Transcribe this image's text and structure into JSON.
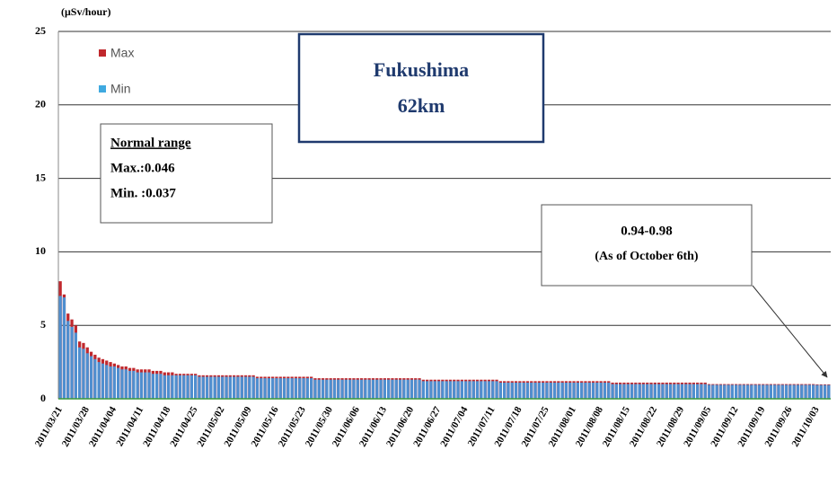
{
  "chart_data": {
    "type": "bar",
    "y_label": "(μSv/hour)",
    "categories": [
      "2011/03/21",
      null,
      null,
      null,
      null,
      null,
      null,
      "2011/03/28",
      null,
      null,
      null,
      null,
      null,
      null,
      "2011/04/04",
      null,
      null,
      null,
      null,
      null,
      null,
      "2011/04/11",
      null,
      null,
      null,
      null,
      null,
      null,
      "2011/04/18",
      null,
      null,
      null,
      null,
      null,
      null,
      "2011/04/25",
      null,
      null,
      null,
      null,
      null,
      null,
      "2011/05/02",
      null,
      null,
      null,
      null,
      null,
      null,
      "2011/05/09",
      null,
      null,
      null,
      null,
      null,
      null,
      "2011/05/16",
      null,
      null,
      null,
      null,
      null,
      null,
      "2011/05/23",
      null,
      null,
      null,
      null,
      null,
      null,
      "2011/05/30",
      null,
      null,
      null,
      null,
      null,
      null,
      "2011/06/06",
      null,
      null,
      null,
      null,
      null,
      null,
      "2011/06/13",
      null,
      null,
      null,
      null,
      null,
      null,
      "2011/06/20",
      null,
      null,
      null,
      null,
      null,
      null,
      "2011/06/27",
      null,
      null,
      null,
      null,
      null,
      null,
      "2011/07/04",
      null,
      null,
      null,
      null,
      null,
      null,
      "2011/07/11",
      null,
      null,
      null,
      null,
      null,
      null,
      "2011/07/18",
      null,
      null,
      null,
      null,
      null,
      null,
      "2011/07/25",
      null,
      null,
      null,
      null,
      null,
      null,
      "2011/08/01",
      null,
      null,
      null,
      null,
      null,
      null,
      "2011/08/08",
      null,
      null,
      null,
      null,
      null,
      null,
      "2011/08/15",
      null,
      null,
      null,
      null,
      null,
      null,
      "2011/08/22",
      null,
      null,
      null,
      null,
      null,
      null,
      "2011/08/29",
      null,
      null,
      null,
      null,
      null,
      null,
      "2011/09/05",
      null,
      null,
      null,
      null,
      null,
      null,
      "2011/09/12",
      null,
      null,
      null,
      null,
      null,
      null,
      "2011/09/19",
      null,
      null,
      null,
      null,
      null,
      null,
      "2011/09/26",
      null,
      null,
      null,
      null,
      null,
      null,
      "2011/10/03",
      null,
      null,
      null
    ],
    "series": [
      {
        "name": "Max",
        "color": "#c0282d",
        "values": [
          8.0,
          7.1,
          5.8,
          5.4,
          5.0,
          3.9,
          3.8,
          3.5,
          3.2,
          3.0,
          2.8,
          2.7,
          2.6,
          2.5,
          2.4,
          2.3,
          2.2,
          2.2,
          2.1,
          2.1,
          2.0,
          2.0,
          2.0,
          2.0,
          1.9,
          1.9,
          1.9,
          1.8,
          1.8,
          1.8,
          1.7,
          1.7,
          1.7,
          1.7,
          1.7,
          1.7,
          1.6,
          1.6,
          1.6,
          1.6,
          1.6,
          1.6,
          1.6,
          1.6,
          1.6,
          1.6,
          1.6,
          1.6,
          1.6,
          1.6,
          1.6,
          1.5,
          1.5,
          1.5,
          1.5,
          1.5,
          1.5,
          1.5,
          1.5,
          1.5,
          1.5,
          1.5,
          1.5,
          1.5,
          1.5,
          1.5,
          1.4,
          1.4,
          1.4,
          1.4,
          1.4,
          1.4,
          1.4,
          1.4,
          1.4,
          1.4,
          1.4,
          1.4,
          1.4,
          1.4,
          1.4,
          1.4,
          1.4,
          1.4,
          1.4,
          1.4,
          1.4,
          1.4,
          1.4,
          1.4,
          1.4,
          1.4,
          1.4,
          1.4,
          1.3,
          1.3,
          1.3,
          1.3,
          1.3,
          1.3,
          1.3,
          1.3,
          1.3,
          1.3,
          1.3,
          1.3,
          1.3,
          1.3,
          1.3,
          1.3,
          1.3,
          1.3,
          1.3,
          1.3,
          1.2,
          1.2,
          1.2,
          1.2,
          1.2,
          1.2,
          1.2,
          1.2,
          1.2,
          1.2,
          1.2,
          1.2,
          1.2,
          1.2,
          1.2,
          1.2,
          1.2,
          1.2,
          1.2,
          1.2,
          1.2,
          1.2,
          1.2,
          1.2,
          1.2,
          1.2,
          1.2,
          1.2,
          1.2,
          1.1,
          1.1,
          1.1,
          1.1,
          1.1,
          1.1,
          1.1,
          1.1,
          1.1,
          1.1,
          1.1,
          1.1,
          1.1,
          1.1,
          1.1,
          1.1,
          1.1,
          1.1,
          1.1,
          1.1,
          1.1,
          1.1,
          1.1,
          1.1,
          1.1,
          1.0,
          1.0,
          1.0,
          1.0,
          1.0,
          1.0,
          1.0,
          1.0,
          1.0,
          1.0,
          1.0,
          1.0,
          1.0,
          1.0,
          1.0,
          1.0,
          1.0,
          1.0,
          1.0,
          1.0,
          1.0,
          1.0,
          1.0,
          1.0,
          1.0,
          1.0,
          1.0,
          1.0,
          0.98,
          0.98,
          0.98,
          0.98
        ]
      },
      {
        "name": "Min",
        "color": "#3fa9e0",
        "values": [
          7.0,
          6.9,
          5.3,
          4.9,
          4.5,
          3.5,
          3.4,
          3.1,
          2.9,
          2.7,
          2.5,
          2.4,
          2.3,
          2.2,
          2.2,
          2.1,
          2.0,
          2.0,
          1.9,
          1.9,
          1.8,
          1.8,
          1.8,
          1.8,
          1.7,
          1.7,
          1.7,
          1.6,
          1.6,
          1.6,
          1.6,
          1.6,
          1.6,
          1.6,
          1.6,
          1.6,
          1.5,
          1.5,
          1.5,
          1.5,
          1.5,
          1.5,
          1.5,
          1.5,
          1.5,
          1.5,
          1.5,
          1.5,
          1.5,
          1.5,
          1.5,
          1.4,
          1.4,
          1.4,
          1.4,
          1.4,
          1.4,
          1.4,
          1.4,
          1.4,
          1.4,
          1.4,
          1.4,
          1.4,
          1.4,
          1.4,
          1.3,
          1.3,
          1.3,
          1.3,
          1.3,
          1.3,
          1.3,
          1.3,
          1.3,
          1.3,
          1.3,
          1.3,
          1.3,
          1.3,
          1.3,
          1.3,
          1.3,
          1.3,
          1.3,
          1.3,
          1.3,
          1.3,
          1.3,
          1.3,
          1.3,
          1.3,
          1.3,
          1.3,
          1.2,
          1.2,
          1.2,
          1.2,
          1.2,
          1.2,
          1.2,
          1.2,
          1.2,
          1.2,
          1.2,
          1.2,
          1.2,
          1.2,
          1.2,
          1.2,
          1.2,
          1.2,
          1.2,
          1.2,
          1.1,
          1.1,
          1.1,
          1.1,
          1.1,
          1.1,
          1.1,
          1.1,
          1.1,
          1.1,
          1.1,
          1.1,
          1.1,
          1.1,
          1.1,
          1.1,
          1.1,
          1.1,
          1.1,
          1.1,
          1.1,
          1.1,
          1.1,
          1.1,
          1.1,
          1.1,
          1.1,
          1.1,
          1.1,
          1.0,
          1.0,
          1.0,
          1.0,
          1.0,
          1.0,
          1.0,
          1.0,
          1.0,
          1.0,
          1.0,
          1.0,
          1.0,
          1.0,
          1.0,
          1.0,
          1.0,
          1.0,
          1.0,
          1.0,
          1.0,
          1.0,
          1.0,
          1.0,
          1.0,
          0.95,
          0.95,
          0.95,
          0.95,
          0.95,
          0.95,
          0.95,
          0.95,
          0.95,
          0.95,
          0.95,
          0.95,
          0.95,
          0.95,
          0.95,
          0.95,
          0.95,
          0.95,
          0.95,
          0.95,
          0.95,
          0.95,
          0.95,
          0.95,
          0.95,
          0.95,
          0.95,
          0.95,
          0.94,
          0.94,
          0.94,
          0.94
        ]
      }
    ],
    "ylim": [
      0,
      25
    ],
    "yticks": [
      0,
      5,
      10,
      15,
      20,
      25
    ],
    "grid": true,
    "annotations": [
      "Fukushima",
      "62km",
      "Normal range",
      "Max.:0.046",
      "Min. :0.037",
      "0.94-0.98",
      "(As of October 6th)"
    ]
  }
}
